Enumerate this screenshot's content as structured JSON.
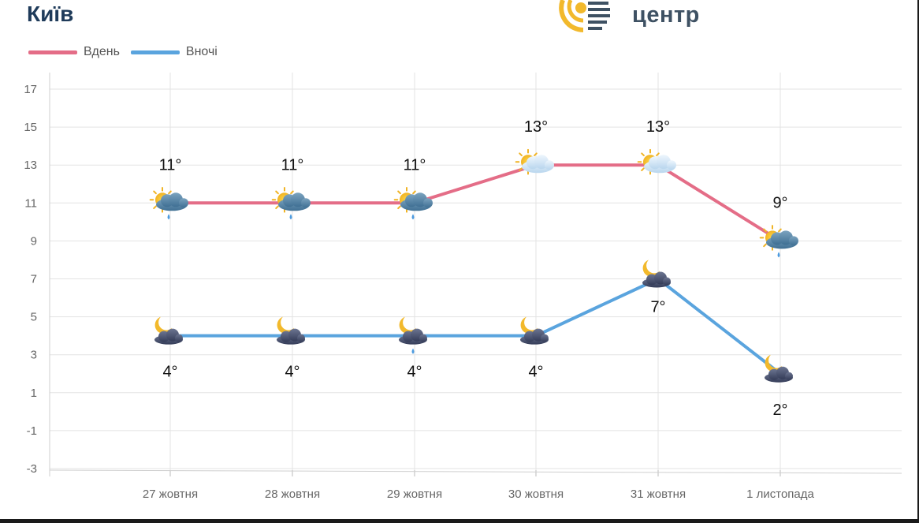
{
  "header": {
    "city": "Київ",
    "logo_text": "центр"
  },
  "colors": {
    "day": "#e46d87",
    "night": "#5aa4de",
    "grid": "#e3e3e3"
  },
  "chart_data": {
    "type": "line",
    "categories": [
      "27 жовтня",
      "28 жовтня",
      "29 жовтня",
      "30 жовтня",
      "31 жовтня",
      "1 листопада"
    ],
    "ylim": [
      -3,
      17
    ],
    "yticks": [
      17,
      15,
      13,
      11,
      9,
      7,
      5,
      3,
      1,
      -1,
      -3
    ],
    "grid": true,
    "legend_position": "top-left",
    "series": [
      {
        "name": "Вдень",
        "values": [
          11,
          11,
          11,
          13,
          13,
          9
        ],
        "labels": [
          "11°",
          "11°",
          "11°",
          "13°",
          "13°",
          "9°"
        ],
        "icons": [
          "partly-cloudy-rain-icon",
          "partly-cloudy-rain-icon",
          "partly-cloudy-rain-icon",
          "sun-cloud-icon",
          "sun-cloud-icon",
          "partly-cloudy-rain-icon"
        ]
      },
      {
        "name": "Вночі",
        "values": [
          4,
          4,
          4,
          4,
          7,
          2
        ],
        "labels": [
          "4°",
          "4°",
          "4°",
          "4°",
          "7°",
          "2°"
        ],
        "icons": [
          "moon-cloud-icon",
          "moon-cloud-icon",
          "moon-cloud-rain-icon",
          "moon-cloud-icon",
          "moon-cloud-icon",
          "moon-cloud-icon"
        ]
      }
    ]
  }
}
